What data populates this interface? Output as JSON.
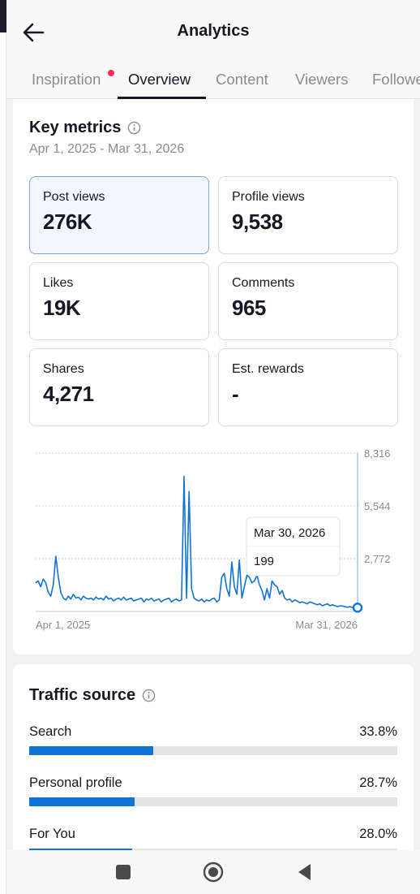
{
  "header": {
    "title": "Analytics",
    "tabs": [
      {
        "label": "Inspiration",
        "badge": true
      },
      {
        "label": "Overview",
        "active": true
      },
      {
        "label": "Content"
      },
      {
        "label": "Viewers"
      },
      {
        "label": "Followers"
      }
    ]
  },
  "key_metrics": {
    "title": "Key metrics",
    "date_range": "Apr 1, 2025 - Mar 31, 2026",
    "metrics": [
      {
        "label": "Post views",
        "value": "276K",
        "selected": true
      },
      {
        "label": "Profile views",
        "value": "9,538"
      },
      {
        "label": "Likes",
        "value": "19K"
      },
      {
        "label": "Comments",
        "value": "965"
      },
      {
        "label": "Shares",
        "value": "4,271"
      },
      {
        "label": "Est. rewards",
        "value": "-"
      }
    ]
  },
  "chart_data": {
    "type": "line",
    "title": "",
    "xlabel": "",
    "ylabel": "",
    "x_tick_labels": [
      "Apr 1, 2025",
      "Mar 31, 2026"
    ],
    "y_tick_labels": [
      "8,316",
      "5,544",
      "2,772"
    ],
    "ylim": [
      0,
      8316
    ],
    "grid": true,
    "tooltip": {
      "date": "Mar 30, 2026",
      "value": "199"
    },
    "series": [
      {
        "color": "#1273d6",
        "values": [
          1500,
          1600,
          1300,
          1700,
          1500,
          1000,
          800,
          1400,
          2900,
          1800,
          1000,
          700,
          600,
          800,
          650,
          900,
          700,
          750,
          600,
          800,
          700,
          650,
          700,
          600,
          750,
          650,
          700,
          600,
          800,
          650,
          700,
          550,
          650,
          700,
          600,
          750,
          600,
          650,
          700,
          550,
          600,
          650,
          700,
          500,
          650,
          600,
          700,
          550,
          600,
          650,
          500,
          600,
          650,
          700,
          500,
          600,
          650,
          550,
          600,
          7100,
          700,
          6300,
          1200,
          700,
          600,
          550,
          650,
          500,
          600,
          550,
          650,
          700,
          500,
          600,
          1800,
          2000,
          1200,
          800,
          2600,
          1300,
          900,
          2700,
          700,
          1300,
          1900,
          1800,
          1500,
          1600,
          1900,
          1400,
          1100,
          600,
          1200,
          700,
          1600,
          1400,
          1300,
          900,
          1100,
          700,
          600,
          650,
          500,
          600,
          550,
          450,
          500,
          450,
          400,
          500,
          450,
          400,
          350,
          400,
          300,
          350,
          400,
          300,
          350,
          300,
          250,
          300,
          280,
          250,
          220,
          250,
          200,
          230,
          199
        ]
      }
    ]
  },
  "traffic_source": {
    "title": "Traffic source",
    "rows": [
      {
        "label": "Search",
        "pct_label": "33.8%",
        "fraction": 0.338
      },
      {
        "label": "Personal profile",
        "pct_label": "28.7%",
        "fraction": 0.287
      },
      {
        "label": "For You",
        "pct_label": "28.0%",
        "fraction": 0.28
      }
    ]
  },
  "colors": {
    "accent": "#1273d6",
    "badge": "#fe2c55",
    "text": "#161823",
    "muted": "#8a8b91"
  },
  "icons": {
    "back": "arrow-left-icon",
    "info": "info-circle-icon",
    "nav": [
      "recents-square-icon",
      "home-circle-icon",
      "back-triangle-icon"
    ]
  }
}
